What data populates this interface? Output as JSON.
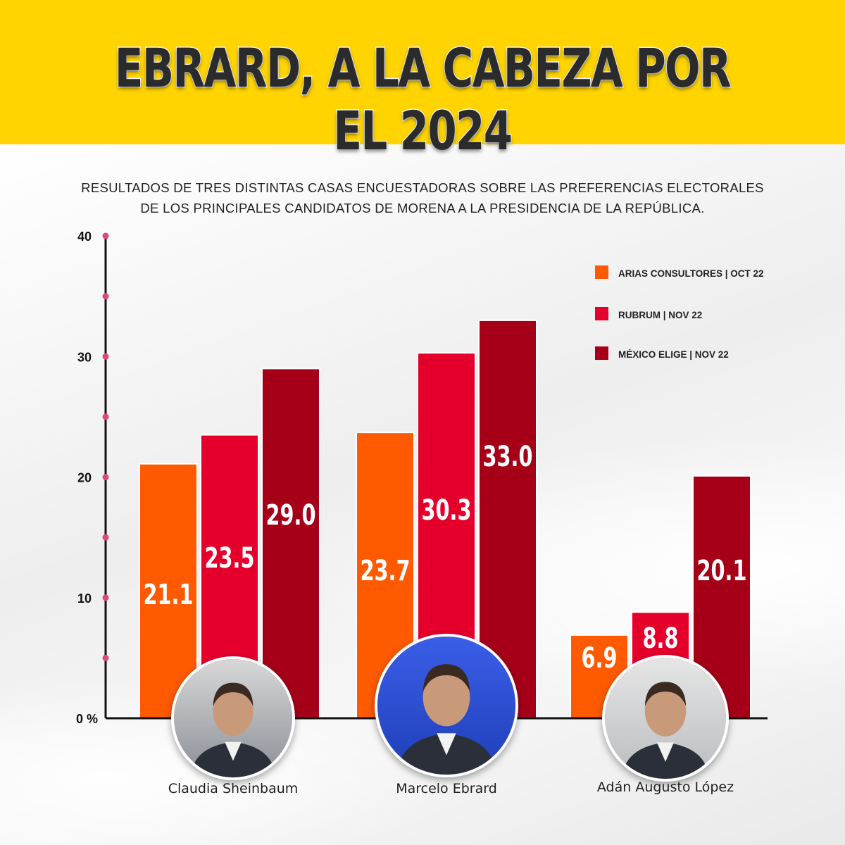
{
  "header": {
    "headline": "EBRARD, A LA CABEZA POR EL 2024",
    "subtitle_line1": "RESULTADOS DE TRES DISTINTAS CASAS ENCUESTADORAS SOBRE LAS PREFERENCIAS ELECTORALES",
    "subtitle_line2": "DE LOS PRINCIPALES CANDIDATOS DE MORENA A LA PRESIDENCIA DE LA REPÚBLICA."
  },
  "colors": {
    "banner": "#ffd400",
    "arias": "#ff5a00",
    "rubrum": "#e4002b",
    "mexico_elige": "#a50018",
    "axis_dots": "#e0457b"
  },
  "chart_data": {
    "type": "bar",
    "title": "EBRARD, A LA CABEZA POR EL 2024",
    "categories": [
      "Claudia Sheinbaum",
      "Marcelo Ebrard",
      "Adán Augusto López"
    ],
    "series": [
      {
        "name": "ARIAS CONSULTORES | OCT 22",
        "values": [
          21.1,
          23.7,
          6.9
        ],
        "labels": [
          "21.1",
          "23.7",
          "6.9"
        ],
        "color": "#ff5a00"
      },
      {
        "name": "RUBRUM | NOV 22",
        "values": [
          23.5,
          30.3,
          8.8
        ],
        "labels": [
          "23.5",
          "30.3",
          "8.8"
        ],
        "color": "#e4002b"
      },
      {
        "name": "MÉXICO ELIGE | NOV 22",
        "values": [
          29.0,
          33.0,
          20.1
        ],
        "labels": [
          "29.0",
          "33.0",
          "20.1"
        ],
        "color": "#a50018"
      }
    ],
    "yticks": [
      "0 %",
      "10",
      "20",
      "30",
      "40"
    ],
    "ylim": [
      0,
      40
    ],
    "legend_position": "top-right",
    "grid": false
  },
  "candidates": [
    {
      "name": "Claudia Sheinbaum",
      "photo": "portrait-photo"
    },
    {
      "name": "Marcelo Ebrard",
      "photo": "portrait-photo"
    },
    {
      "name": "Adán Augusto López",
      "photo": "portrait-photo"
    }
  ]
}
